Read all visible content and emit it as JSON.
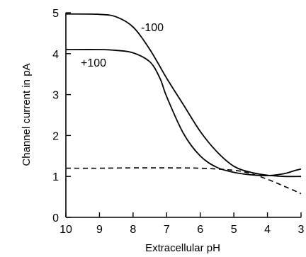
{
  "chart_data": {
    "type": "line",
    "xlabel": "Extracellular pH",
    "ylabel": "Channel current in pA",
    "xlim": [
      10,
      3
    ],
    "ylim": [
      0,
      5
    ],
    "x_reversed": true,
    "x_ticks": [
      10,
      9,
      8,
      7,
      6,
      5,
      4,
      3
    ],
    "y_ticks": [
      0,
      1,
      2,
      3,
      4,
      5
    ],
    "grid": false,
    "series": [
      {
        "name": "-100",
        "style": "solid",
        "points": [
          [
            10,
            4.97
          ],
          [
            9,
            4.96
          ],
          [
            8.5,
            4.9
          ],
          [
            8,
            4.65
          ],
          [
            7.5,
            4.1
          ],
          [
            7,
            3.4
          ],
          [
            6.5,
            2.75
          ],
          [
            6,
            2.1
          ],
          [
            5.5,
            1.6
          ],
          [
            5,
            1.25
          ],
          [
            4.5,
            1.1
          ],
          [
            4,
            1.03
          ],
          [
            3.5,
            1.0
          ],
          [
            3,
            1.0
          ]
        ]
      },
      {
        "name": "+100",
        "style": "solid",
        "points": [
          [
            10,
            4.1
          ],
          [
            9,
            4.1
          ],
          [
            8.5,
            4.08
          ],
          [
            8,
            4.02
          ],
          [
            7.5,
            3.8
          ],
          [
            7.2,
            3.4
          ],
          [
            7,
            2.95
          ],
          [
            6.5,
            2.05
          ],
          [
            6,
            1.5
          ],
          [
            5.5,
            1.22
          ],
          [
            5,
            1.1
          ],
          [
            4.5,
            1.04
          ],
          [
            4,
            1.02
          ],
          [
            3.5,
            1.07
          ],
          [
            3.2,
            1.14
          ],
          [
            3,
            1.18
          ]
        ]
      },
      {
        "style": "dashed",
        "points": [
          [
            10,
            1.2
          ],
          [
            9,
            1.2
          ],
          [
            8,
            1.21
          ],
          [
            7,
            1.21
          ],
          [
            6,
            1.2
          ],
          [
            5,
            1.15
          ],
          [
            4.5,
            1.07
          ],
          [
            4,
            0.93
          ],
          [
            3.5,
            0.76
          ],
          [
            3,
            0.58
          ]
        ]
      }
    ]
  }
}
